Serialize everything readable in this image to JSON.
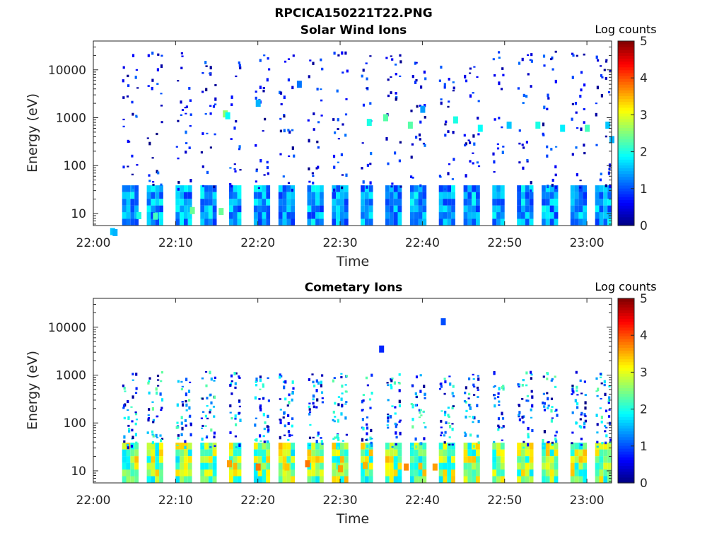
{
  "figure_title": "RPCICA150221T22.PNG",
  "colors": {
    "axis": "#262626",
    "colormap": "jet"
  },
  "chart_data": [
    {
      "type": "heatmap",
      "title": "Solar Wind Ions",
      "xlabel": "Time",
      "ylabel": "Energy (eV)",
      "x_ticks": [
        "22:00",
        "22:10",
        "22:20",
        "22:30",
        "22:40",
        "22:50",
        "23:00"
      ],
      "xlim_minutes": [
        0,
        63
      ],
      "y_scale": "log",
      "y_ticks": [
        {
          "value": 10,
          "label": "10"
        },
        {
          "value": 100,
          "label": "100"
        },
        {
          "value": 1000,
          "label": "1000"
        },
        {
          "value": 10000,
          "label": "10000"
        }
      ],
      "ylim": [
        5.6,
        40000
      ],
      "colorbar": {
        "title": "Log counts",
        "range": [
          0,
          5
        ],
        "ticks": [
          "0",
          "1",
          "2",
          "3",
          "4",
          "5"
        ]
      },
      "seed": 17,
      "low_band": {
        "base": 1.4,
        "var": 0.55
      },
      "cells": [
        [
          2.3,
          4.2,
          1.6
        ],
        [
          2.6,
          4.0,
          1.5
        ],
        [
          5.5,
          9.0,
          2.0
        ],
        [
          7.5,
          8.8,
          2.2
        ],
        [
          12.0,
          11.5,
          2.4
        ],
        [
          15.5,
          11.0,
          2.4
        ],
        [
          16.0,
          1200,
          2.6
        ],
        [
          16.3,
          1100,
          1.9
        ],
        [
          20.0,
          2000,
          1.5
        ],
        [
          25.0,
          5000,
          1.2
        ],
        [
          33.5,
          800,
          2.0
        ],
        [
          35.5,
          1000,
          2.3
        ],
        [
          40.0,
          1500,
          1.4
        ],
        [
          38.5,
          700,
          2.3
        ],
        [
          44.0,
          900,
          2.0
        ],
        [
          47.0,
          600,
          1.9
        ],
        [
          50.5,
          700,
          1.6
        ],
        [
          54.0,
          700,
          2.0
        ],
        [
          57.0,
          600,
          1.8
        ],
        [
          60.0,
          600,
          2.2
        ],
        [
          62.5,
          700,
          1.6
        ],
        [
          63.0,
          350,
          1.5
        ]
      ]
    },
    {
      "type": "heatmap",
      "title": "Cometary Ions",
      "xlabel": "Time",
      "ylabel": "Energy (eV)",
      "x_ticks": [
        "22:00",
        "22:10",
        "22:20",
        "22:30",
        "22:40",
        "22:50",
        "23:00"
      ],
      "xlim_minutes": [
        0,
        63
      ],
      "y_scale": "log",
      "y_ticks": [
        {
          "value": 10,
          "label": "10"
        },
        {
          "value": 100,
          "label": "100"
        },
        {
          "value": 1000,
          "label": "1000"
        },
        {
          "value": 10000,
          "label": "10000"
        }
      ],
      "ylim": [
        5.6,
        40000
      ],
      "colorbar": {
        "title": "Log counts",
        "range": [
          0,
          5
        ],
        "ticks": [
          "0",
          "1",
          "2",
          "3",
          "4",
          "5"
        ]
      },
      "seed": 91,
      "low_band": {
        "base": 2.6,
        "var": 0.9
      },
      "cells": [
        [
          16.5,
          14.0,
          3.6
        ],
        [
          20.0,
          12.0,
          3.8
        ],
        [
          23.5,
          12.0,
          3.4
        ],
        [
          26.0,
          14.0,
          3.8
        ],
        [
          30.0,
          11.0,
          3.6
        ],
        [
          33.0,
          13.0,
          3.5
        ],
        [
          38.0,
          12.0,
          3.7
        ],
        [
          41.5,
          12.0,
          3.6
        ],
        [
          42.5,
          13000,
          1.0
        ],
        [
          35.0,
          3500,
          0.8
        ]
      ]
    }
  ]
}
